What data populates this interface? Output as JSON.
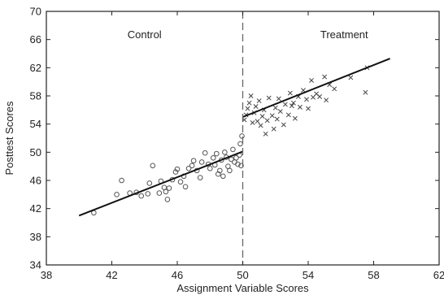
{
  "chart_data": {
    "type": "scatter",
    "title": "",
    "xlabel": "Assignment Variable Scores",
    "ylabel": "Posttest Scores",
    "xlim": [
      38,
      62
    ],
    "ylim": [
      34,
      70
    ],
    "xticks": [
      38,
      42,
      46,
      50,
      54,
      58,
      62
    ],
    "yticks": [
      34,
      38,
      42,
      46,
      50,
      54,
      58,
      62,
      66,
      70
    ],
    "grid": false,
    "cutoff": 50,
    "annotations": [
      {
        "text": "Control",
        "x": 44,
        "y": 66.2
      },
      {
        "text": "Treatment",
        "x": 56.2,
        "y": 66.2
      }
    ],
    "series": [
      {
        "name": "Control",
        "marker": "circle",
        "points": [
          [
            40.9,
            41.4
          ],
          [
            42.3,
            44.0
          ],
          [
            42.6,
            46.0
          ],
          [
            43.1,
            44.2
          ],
          [
            43.5,
            44.3
          ],
          [
            43.8,
            43.8
          ],
          [
            44.2,
            44.1
          ],
          [
            44.3,
            45.6
          ],
          [
            44.5,
            48.1
          ],
          [
            44.9,
            44.2
          ],
          [
            45.0,
            45.9
          ],
          [
            45.2,
            45.0
          ],
          [
            45.3,
            44.4
          ],
          [
            45.4,
            43.3
          ],
          [
            45.5,
            44.9
          ],
          [
            45.7,
            46.1
          ],
          [
            45.9,
            47.2
          ],
          [
            46.0,
            47.6
          ],
          [
            46.2,
            45.8
          ],
          [
            46.4,
            46.6
          ],
          [
            46.5,
            45.1
          ],
          [
            46.7,
            47.7
          ],
          [
            46.9,
            48.1
          ],
          [
            47.0,
            48.8
          ],
          [
            47.2,
            47.4
          ],
          [
            47.4,
            46.4
          ],
          [
            47.5,
            48.6
          ],
          [
            47.7,
            49.9
          ],
          [
            47.9,
            48.3
          ],
          [
            48.0,
            47.7
          ],
          [
            48.2,
            49.2
          ],
          [
            48.3,
            48.2
          ],
          [
            48.4,
            49.8
          ],
          [
            48.5,
            46.9
          ],
          [
            48.6,
            47.4
          ],
          [
            48.7,
            48.9
          ],
          [
            48.8,
            46.6
          ],
          [
            48.9,
            50.0
          ],
          [
            49.0,
            49.3
          ],
          [
            49.1,
            48.0
          ],
          [
            49.2,
            47.4
          ],
          [
            49.3,
            49.0
          ],
          [
            49.4,
            50.4
          ],
          [
            49.5,
            48.6
          ],
          [
            49.6,
            49.2
          ],
          [
            49.7,
            48.3
          ],
          [
            49.8,
            49.6
          ],
          [
            49.85,
            51.2
          ],
          [
            49.9,
            48.1
          ],
          [
            49.95,
            52.3
          ]
        ]
      },
      {
        "name": "Treatment",
        "marker": "x",
        "points": [
          [
            50.1,
            54.6
          ],
          [
            50.2,
            55.3
          ],
          [
            50.3,
            56.2
          ],
          [
            50.4,
            57.0
          ],
          [
            50.5,
            58.0
          ],
          [
            50.6,
            54.2
          ],
          [
            50.7,
            55.6
          ],
          [
            50.8,
            56.5
          ],
          [
            50.9,
            54.4
          ],
          [
            51.0,
            57.3
          ],
          [
            51.1,
            53.8
          ],
          [
            51.2,
            55.1
          ],
          [
            51.3,
            56.0
          ],
          [
            51.4,
            52.6
          ],
          [
            51.5,
            54.5
          ],
          [
            51.6,
            57.7
          ],
          [
            51.8,
            55.2
          ],
          [
            51.9,
            53.3
          ],
          [
            52.0,
            56.3
          ],
          [
            52.1,
            54.7
          ],
          [
            52.2,
            57.6
          ],
          [
            52.3,
            55.8
          ],
          [
            52.5,
            53.9
          ],
          [
            52.6,
            56.8
          ],
          [
            52.8,
            55.3
          ],
          [
            52.9,
            58.4
          ],
          [
            53.0,
            56.6
          ],
          [
            53.1,
            57.0
          ],
          [
            53.2,
            54.8
          ],
          [
            53.4,
            57.9
          ],
          [
            53.5,
            56.4
          ],
          [
            53.7,
            58.8
          ],
          [
            53.9,
            57.5
          ],
          [
            54.0,
            56.2
          ],
          [
            54.2,
            60.2
          ],
          [
            54.3,
            57.8
          ],
          [
            54.5,
            58.3
          ],
          [
            54.7,
            57.9
          ],
          [
            55.0,
            60.7
          ],
          [
            55.1,
            57.4
          ],
          [
            55.3,
            59.6
          ],
          [
            55.6,
            59.0
          ],
          [
            56.6,
            60.6
          ],
          [
            57.5,
            58.5
          ],
          [
            57.6,
            62.0
          ]
        ]
      }
    ],
    "fit_lines": [
      {
        "x": [
          40,
          50
        ],
        "y": [
          41.0,
          50.1
        ]
      },
      {
        "x": [
          50,
          59
        ],
        "y": [
          55.0,
          63.3
        ]
      }
    ]
  }
}
